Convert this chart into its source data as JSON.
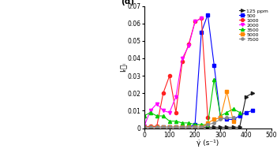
{
  "title": "(d)",
  "xlabel": "γ̇ (s⁻¹)",
  "ylabel": "Iᵣᵜᵢ",
  "xlim": [
    0,
    500
  ],
  "ylim": [
    0,
    0.07
  ],
  "ytick_vals": [
    0,
    0.01,
    0.02,
    0.03,
    0.04,
    0.05,
    0.06,
    0.07
  ],
  "ytick_labels": [
    "0",
    "0.01",
    "0.02",
    "0.03",
    "0.04",
    "0.05",
    "0.06",
    "0.07"
  ],
  "xticks": [
    0,
    100,
    200,
    300,
    400,
    500
  ],
  "series": [
    {
      "label": "125 ppm",
      "color": "#1a1a1a",
      "marker": ">",
      "markersize": 3,
      "x": [
        0,
        25,
        50,
        75,
        100,
        125,
        150,
        175,
        200,
        225,
        250,
        275,
        300,
        325,
        350,
        375,
        400,
        425
      ],
      "y": [
        0.0005,
        0.0005,
        0.0005,
        0.0005,
        0.0005,
        0.0005,
        0.0005,
        0.0005,
        0.0005,
        0.0005,
        0.0005,
        0.0005,
        0.0005,
        0.0005,
        0.0005,
        0.0005,
        0.018,
        0.02
      ]
    },
    {
      "label": "500",
      "color": "#0000ff",
      "marker": "s",
      "markersize": 3,
      "x": [
        0,
        25,
        50,
        75,
        100,
        125,
        150,
        175,
        200,
        225,
        250,
        275,
        300,
        325,
        350,
        375,
        400,
        425
      ],
      "y": [
        0.0005,
        0.0005,
        0.0005,
        0.0005,
        0.0005,
        0.0005,
        0.0005,
        0.0005,
        0.002,
        0.055,
        0.065,
        0.036,
        0.006,
        0.005,
        0.005,
        0.007,
        0.009,
        0.01
      ]
    },
    {
      "label": "1000",
      "color": "#ff2020",
      "marker": "o",
      "markersize": 3,
      "x": [
        0,
        25,
        50,
        75,
        100,
        125,
        150,
        175,
        200,
        225,
        250
      ],
      "y": [
        0.0005,
        0.001,
        0.001,
        0.02,
        0.03,
        0.009,
        0.038,
        0.048,
        0.061,
        0.063,
        0.006
      ]
    },
    {
      "label": "2000",
      "color": "#ff00ff",
      "marker": "v",
      "markersize": 3,
      "x": [
        0,
        25,
        50,
        75,
        100,
        125,
        150,
        175,
        200,
        225
      ],
      "y": [
        0.001,
        0.01,
        0.014,
        0.01,
        0.009,
        0.018,
        0.04,
        0.047,
        0.061,
        0.063
      ]
    },
    {
      "label": "3500",
      "color": "#00cc00",
      "marker": "^",
      "markersize": 3,
      "x": [
        0,
        25,
        50,
        75,
        100,
        125,
        150,
        175,
        200,
        225,
        250,
        275,
        300,
        325,
        350,
        375
      ],
      "y": [
        0.007,
        0.009,
        0.007,
        0.007,
        0.004,
        0.004,
        0.003,
        0.003,
        0.002,
        0.002,
        0.002,
        0.028,
        0.007,
        0.009,
        0.011,
        0.009
      ]
    },
    {
      "label": "5000",
      "color": "#ff8800",
      "marker": "s",
      "markersize": 3,
      "x": [
        0,
        25,
        50,
        75,
        100,
        125,
        150,
        175,
        200,
        225,
        250,
        275,
        300,
        325,
        350
      ],
      "y": [
        0.0005,
        0.0005,
        0.0005,
        0.0005,
        0.0005,
        0.0005,
        0.0005,
        0.0005,
        0.0005,
        0.0005,
        0.003,
        0.005,
        0.006,
        0.021,
        0.004
      ]
    },
    {
      "label": "7500",
      "color": "#888888",
      "marker": "o",
      "markersize": 2.5,
      "x": [
        0,
        25,
        50,
        75,
        100,
        125,
        150,
        175,
        200,
        225,
        250,
        275,
        300,
        325,
        350
      ],
      "y": [
        0.0005,
        0.0005,
        0.0005,
        0.0005,
        0.0005,
        0.0005,
        0.0005,
        0.0005,
        0.0005,
        0.0005,
        0.002,
        0.003,
        0.005,
        0.006,
        0.006
      ]
    }
  ],
  "bg_color": "#f0f0f0",
  "left_panel_color": "#111111",
  "fig_width": 3.51,
  "fig_height": 1.89
}
